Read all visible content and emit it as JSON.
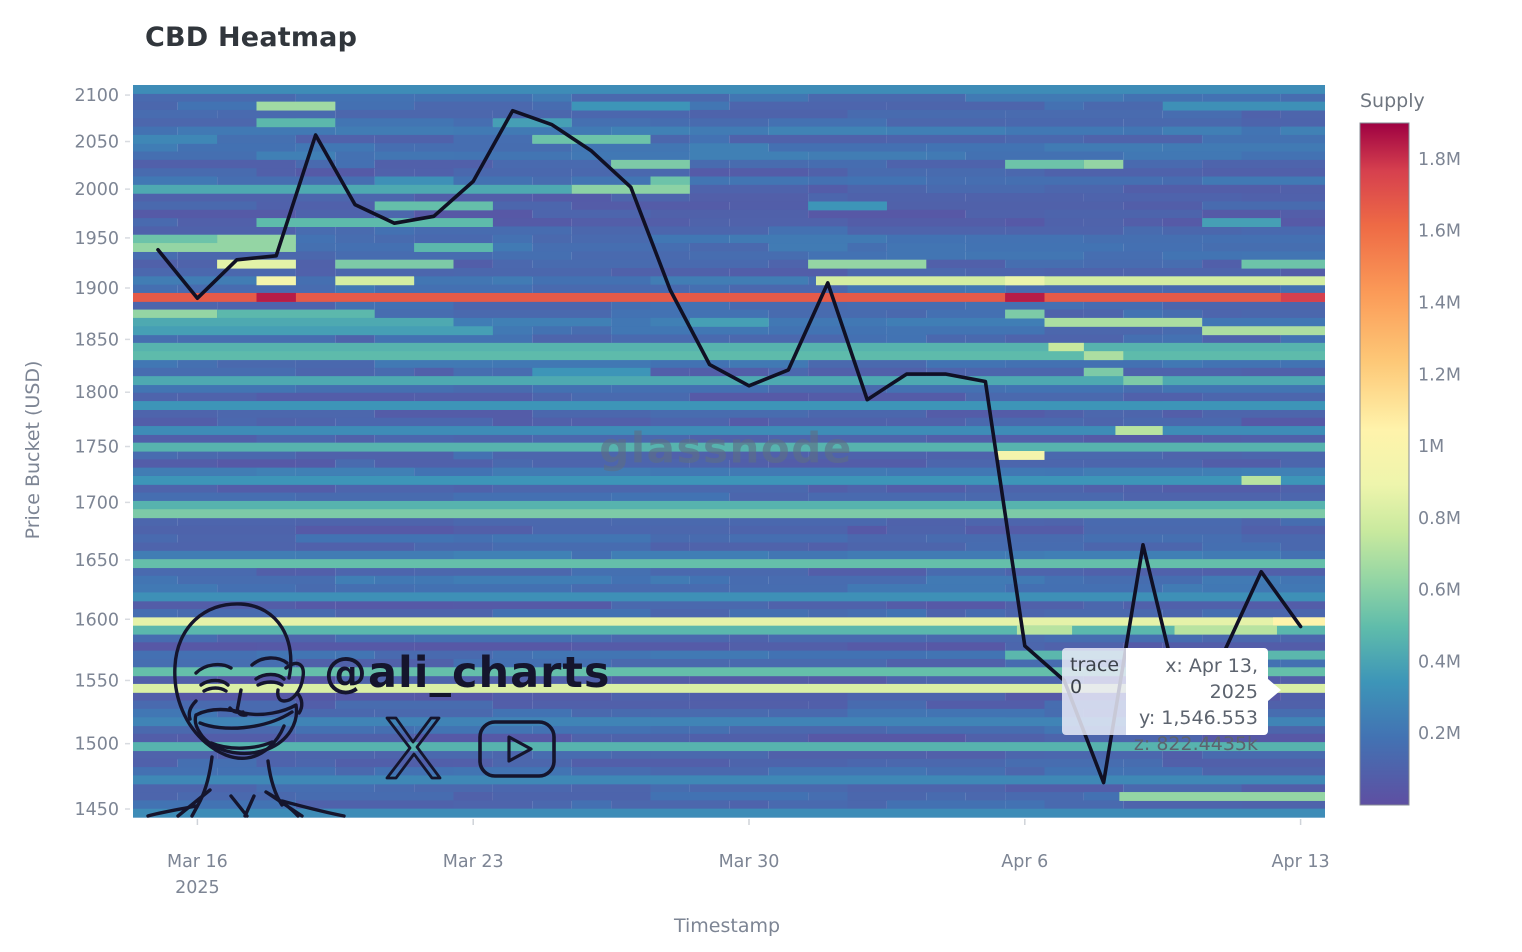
{
  "page": {
    "title": "CBD Heatmap"
  },
  "axes": {
    "x_title": "Timestamp",
    "y_title": "Price Bucket (USD)",
    "x_ticks": [
      {
        "label": "Mar 16",
        "sub": "2025",
        "day": 1
      },
      {
        "label": "Mar 23",
        "sub": "",
        "day": 8
      },
      {
        "label": "Mar 30",
        "sub": "",
        "day": 15
      },
      {
        "label": "Apr 6",
        "sub": "",
        "day": 22
      },
      {
        "label": "Apr 13",
        "sub": "",
        "day": 29
      }
    ],
    "y_ticks": [
      2100,
      2050,
      2000,
      1950,
      1900,
      1850,
      1800,
      1750,
      1700,
      1650,
      1600,
      1550,
      1500,
      1450
    ]
  },
  "colorbar": {
    "title": "Supply",
    "max_value": 1900000,
    "ticks": [
      {
        "label": "1.8M",
        "value": 1800000
      },
      {
        "label": "1.6M",
        "value": 1600000
      },
      {
        "label": "1.4M",
        "value": 1400000
      },
      {
        "label": "1.2M",
        "value": 1200000
      },
      {
        "label": "1M",
        "value": 1000000
      },
      {
        "label": "0.8M",
        "value": 800000
      },
      {
        "label": "0.6M",
        "value": 600000
      },
      {
        "label": "0.4M",
        "value": 400000
      },
      {
        "label": "0.2M",
        "value": 200000
      }
    ]
  },
  "tooltip": {
    "trace": "trace 0",
    "x_line": "x: Apr 13, 2025",
    "y_line": "y: 1,546.553",
    "z_line": "z: 822.4435k"
  },
  "watermarks": {
    "glassnode": "glassnode",
    "handle": "@ali_charts",
    "icons": [
      "x-logo",
      "youtube"
    ]
  },
  "chart_data": {
    "type": "heatmap",
    "subtype": "cost-basis-distribution heatmap with price line overlay",
    "title": "CBD Heatmap",
    "xlabel": "Timestamp",
    "ylabel": "Price Bucket (USD)",
    "y_scale": "log",
    "y_range": [
      1444,
      2111
    ],
    "n_price_buckets": 88,
    "grid": false,
    "legend": "colorbar right, titled Supply, 0 to 1.9M",
    "colormap": "Spectral reversed (low=indigo/blue, mid=teal/green/cream, high=orange/red/maroon)",
    "colormap_stops": [
      [
        0.0,
        "#5e4fa2"
      ],
      [
        0.1,
        "#4273b3"
      ],
      [
        0.18,
        "#3d95b8"
      ],
      [
        0.26,
        "#5fbcab"
      ],
      [
        0.33,
        "#93d5a4"
      ],
      [
        0.4,
        "#c8e99e"
      ],
      [
        0.47,
        "#eef5ac"
      ],
      [
        0.55,
        "#fff3ab"
      ],
      [
        0.65,
        "#fdc877"
      ],
      [
        0.75,
        "#fb9b58"
      ],
      [
        0.85,
        "#ee6a45"
      ],
      [
        0.93,
        "#d6404e"
      ],
      [
        1.0,
        "#9e0142"
      ]
    ],
    "dates": [
      "Mar 15",
      "Mar 16",
      "Mar 17",
      "Mar 18",
      "Mar 19",
      "Mar 20",
      "Mar 21",
      "Mar 22",
      "Mar 23",
      "Mar 24",
      "Mar 25",
      "Mar 26",
      "Mar 27",
      "Mar 28",
      "Mar 29",
      "Mar 30",
      "Mar 31",
      "Apr 1",
      "Apr 2",
      "Apr 3",
      "Apr 4",
      "Apr 5",
      "Apr 6",
      "Apr 7",
      "Apr 8",
      "Apr 9",
      "Apr 10",
      "Apr 11",
      "Apr 12",
      "Apr 13"
    ],
    "price_line": {
      "name": "trace 0",
      "values": [
        1938,
        1890,
        1928,
        1932,
        2057,
        1984,
        1965,
        1972,
        2008,
        2083,
        2068,
        2040,
        2002,
        1898,
        1826,
        1806,
        1821,
        1905,
        1793,
        1817,
        1817,
        1810,
        1578,
        1550,
        1470,
        1663,
        1528,
        1569,
        1640,
        1594
      ]
    },
    "hover_point": {
      "x": "Apr 13, 2025",
      "y": 1546.553,
      "z_supply": 822443.5
    },
    "segment_format": "[day_start, day_end, supply] where day 0 = Mar 15 and cell edges sit at half days",
    "heatmap_rows": [
      {
        "price": 2105,
        "segments": [
          [
            -0.7,
            30.7,
            300000
          ]
        ]
      },
      {
        "price": 2088,
        "segments": [
          [
            2.5,
            4.5,
            660000
          ],
          [
            10.5,
            13.5,
            340000
          ],
          [
            25.5,
            30.7,
            320000
          ]
        ]
      },
      {
        "price": 2072,
        "segments": [
          [
            2.5,
            4.5,
            480000
          ],
          [
            8.5,
            10.5,
            380000
          ]
        ]
      },
      {
        "price": 2052,
        "segments": [
          [
            -0.7,
            1.5,
            280000
          ],
          [
            9.5,
            12.5,
            530000
          ]
        ]
      },
      {
        "price": 2030,
        "segments": [
          [
            11.5,
            13.5,
            570000
          ],
          [
            21.5,
            23.5,
            530000
          ],
          [
            23.5,
            24.5,
            630000
          ]
        ]
      },
      {
        "price": 2012,
        "segments": [
          [
            5.5,
            7.5,
            320000
          ],
          [
            12.5,
            13.5,
            530000
          ]
        ]
      },
      {
        "price": 1997,
        "segments": [
          [
            -0.7,
            10.5,
            420000
          ],
          [
            10.5,
            13.5,
            610000
          ]
        ]
      },
      {
        "price": 1983,
        "segments": [
          [
            5.5,
            8.5,
            510000
          ],
          [
            16.5,
            18.5,
            340000
          ]
        ]
      },
      {
        "price": 1968,
        "segments": [
          [
            2.5,
            8.5,
            490000
          ],
          [
            26.5,
            28.5,
            380000
          ]
        ]
      },
      {
        "price": 1950,
        "segments": [
          [
            -0.7,
            1.5,
            530000
          ],
          [
            1.5,
            3.5,
            630000
          ]
        ]
      },
      {
        "price": 1938,
        "segments": [
          [
            -0.7,
            3.5,
            630000
          ],
          [
            6.5,
            8.5,
            480000
          ]
        ]
      },
      {
        "price": 1924,
        "segments": [
          [
            1.5,
            3.5,
            855000
          ],
          [
            4.5,
            7.5,
            570000
          ],
          [
            16.5,
            19.5,
            630000
          ],
          [
            27.5,
            30.7,
            530000
          ]
        ]
      },
      {
        "price": 1910,
        "segments": [
          [
            2.5,
            3.5,
            950000
          ],
          [
            4.5,
            6.5,
            800000
          ],
          [
            16.7,
            30.7,
            800000
          ],
          [
            21.5,
            22.5,
            880000
          ]
        ]
      },
      {
        "price": 1887,
        "segments": [
          [
            -0.7,
            30.7,
            1672000
          ],
          [
            2.5,
            3.5,
            1843000
          ],
          [
            21.5,
            22.5,
            1843000
          ],
          [
            28.5,
            30.7,
            1767000
          ]
        ]
      },
      {
        "price": 1876,
        "segments": [
          [
            -0.7,
            1.5,
            630000
          ],
          [
            1.5,
            5.5,
            480000
          ],
          [
            21.5,
            22.5,
            570000
          ]
        ]
      },
      {
        "price": 1866,
        "segments": [
          [
            -0.7,
            7.5,
            420000
          ],
          [
            13.5,
            15.5,
            380000
          ],
          [
            22.5,
            26.5,
            690000
          ]
        ]
      },
      {
        "price": 1857,
        "segments": [
          [
            -0.7,
            8.5,
            380000
          ],
          [
            26.5,
            30.7,
            690000
          ]
        ]
      },
      {
        "price": 1845,
        "segments": [
          [
            -0.7,
            30.7,
            460000
          ],
          [
            22.6,
            23.5,
            760000
          ]
        ]
      },
      {
        "price": 1833,
        "segments": [
          [
            -0.7,
            30.7,
            490000
          ],
          [
            23.5,
            24.5,
            690000
          ]
        ]
      },
      {
        "price": 1820,
        "segments": [
          [
            9.5,
            12.5,
            340000
          ],
          [
            23.5,
            24.5,
            570000
          ]
        ]
      },
      {
        "price": 1810,
        "segments": [
          [
            -0.7,
            30.7,
            420000
          ],
          [
            24.5,
            25.5,
            570000
          ]
        ]
      },
      {
        "price": 1786,
        "segments": [
          [
            -0.7,
            30.7,
            340000
          ]
        ]
      },
      {
        "price": 1763,
        "segments": [
          [
            -0.7,
            30.7,
            300000
          ],
          [
            24.3,
            25.5,
            720000
          ]
        ]
      },
      {
        "price": 1750,
        "segments": [
          [
            -0.7,
            30.7,
            460000
          ]
        ]
      },
      {
        "price": 1741,
        "segments": [
          [
            21.3,
            22.5,
            950000
          ]
        ]
      },
      {
        "price": 1722,
        "segments": [
          [
            -0.7,
            30.7,
            340000
          ],
          [
            27.5,
            28.5,
            720000
          ]
        ]
      },
      {
        "price": 1700,
        "segments": [
          [
            -0.7,
            30.7,
            460000
          ]
        ]
      },
      {
        "price": 1690,
        "segments": [
          [
            -0.7,
            30.7,
            570000
          ]
        ]
      },
      {
        "price": 1645,
        "segments": [
          [
            -0.7,
            30.7,
            510000
          ]
        ]
      },
      {
        "price": 1620,
        "segments": [
          [
            -0.7,
            30.7,
            320000
          ]
        ]
      },
      {
        "price": 1598,
        "segments": [
          [
            -0.7,
            30.7,
            860000
          ],
          [
            28.3,
            30.7,
            1045000
          ]
        ]
      },
      {
        "price": 1589,
        "segments": [
          [
            -0.7,
            30.7,
            475000
          ],
          [
            21.8,
            23.2,
            720000
          ],
          [
            25.8,
            28.4,
            720000
          ]
        ]
      },
      {
        "price": 1573,
        "segments": [
          [
            21.5,
            30.7,
            475000
          ]
        ]
      },
      {
        "price": 1556,
        "segments": [
          [
            -0.7,
            30.7,
            510000
          ]
        ]
      },
      {
        "price": 1544,
        "segments": [
          [
            -0.7,
            30.7,
            822443
          ]
        ]
      },
      {
        "price": 1520,
        "segments": [
          [
            -0.7,
            30.7,
            266000
          ]
        ]
      },
      {
        "price": 1497,
        "segments": [
          [
            -0.7,
            30.7,
            460000
          ]
        ]
      },
      {
        "price": 1475,
        "segments": [
          [
            -0.7,
            30.7,
            285000
          ]
        ]
      },
      {
        "price": 1457,
        "segments": [
          [
            24.4,
            30.7,
            630000
          ]
        ]
      },
      {
        "price": 1449,
        "segments": [
          [
            -0.7,
            30.7,
            300000
          ]
        ]
      }
    ],
    "background_supply_range": [
      50000,
      360000
    ],
    "noise_seed": 20250413
  }
}
